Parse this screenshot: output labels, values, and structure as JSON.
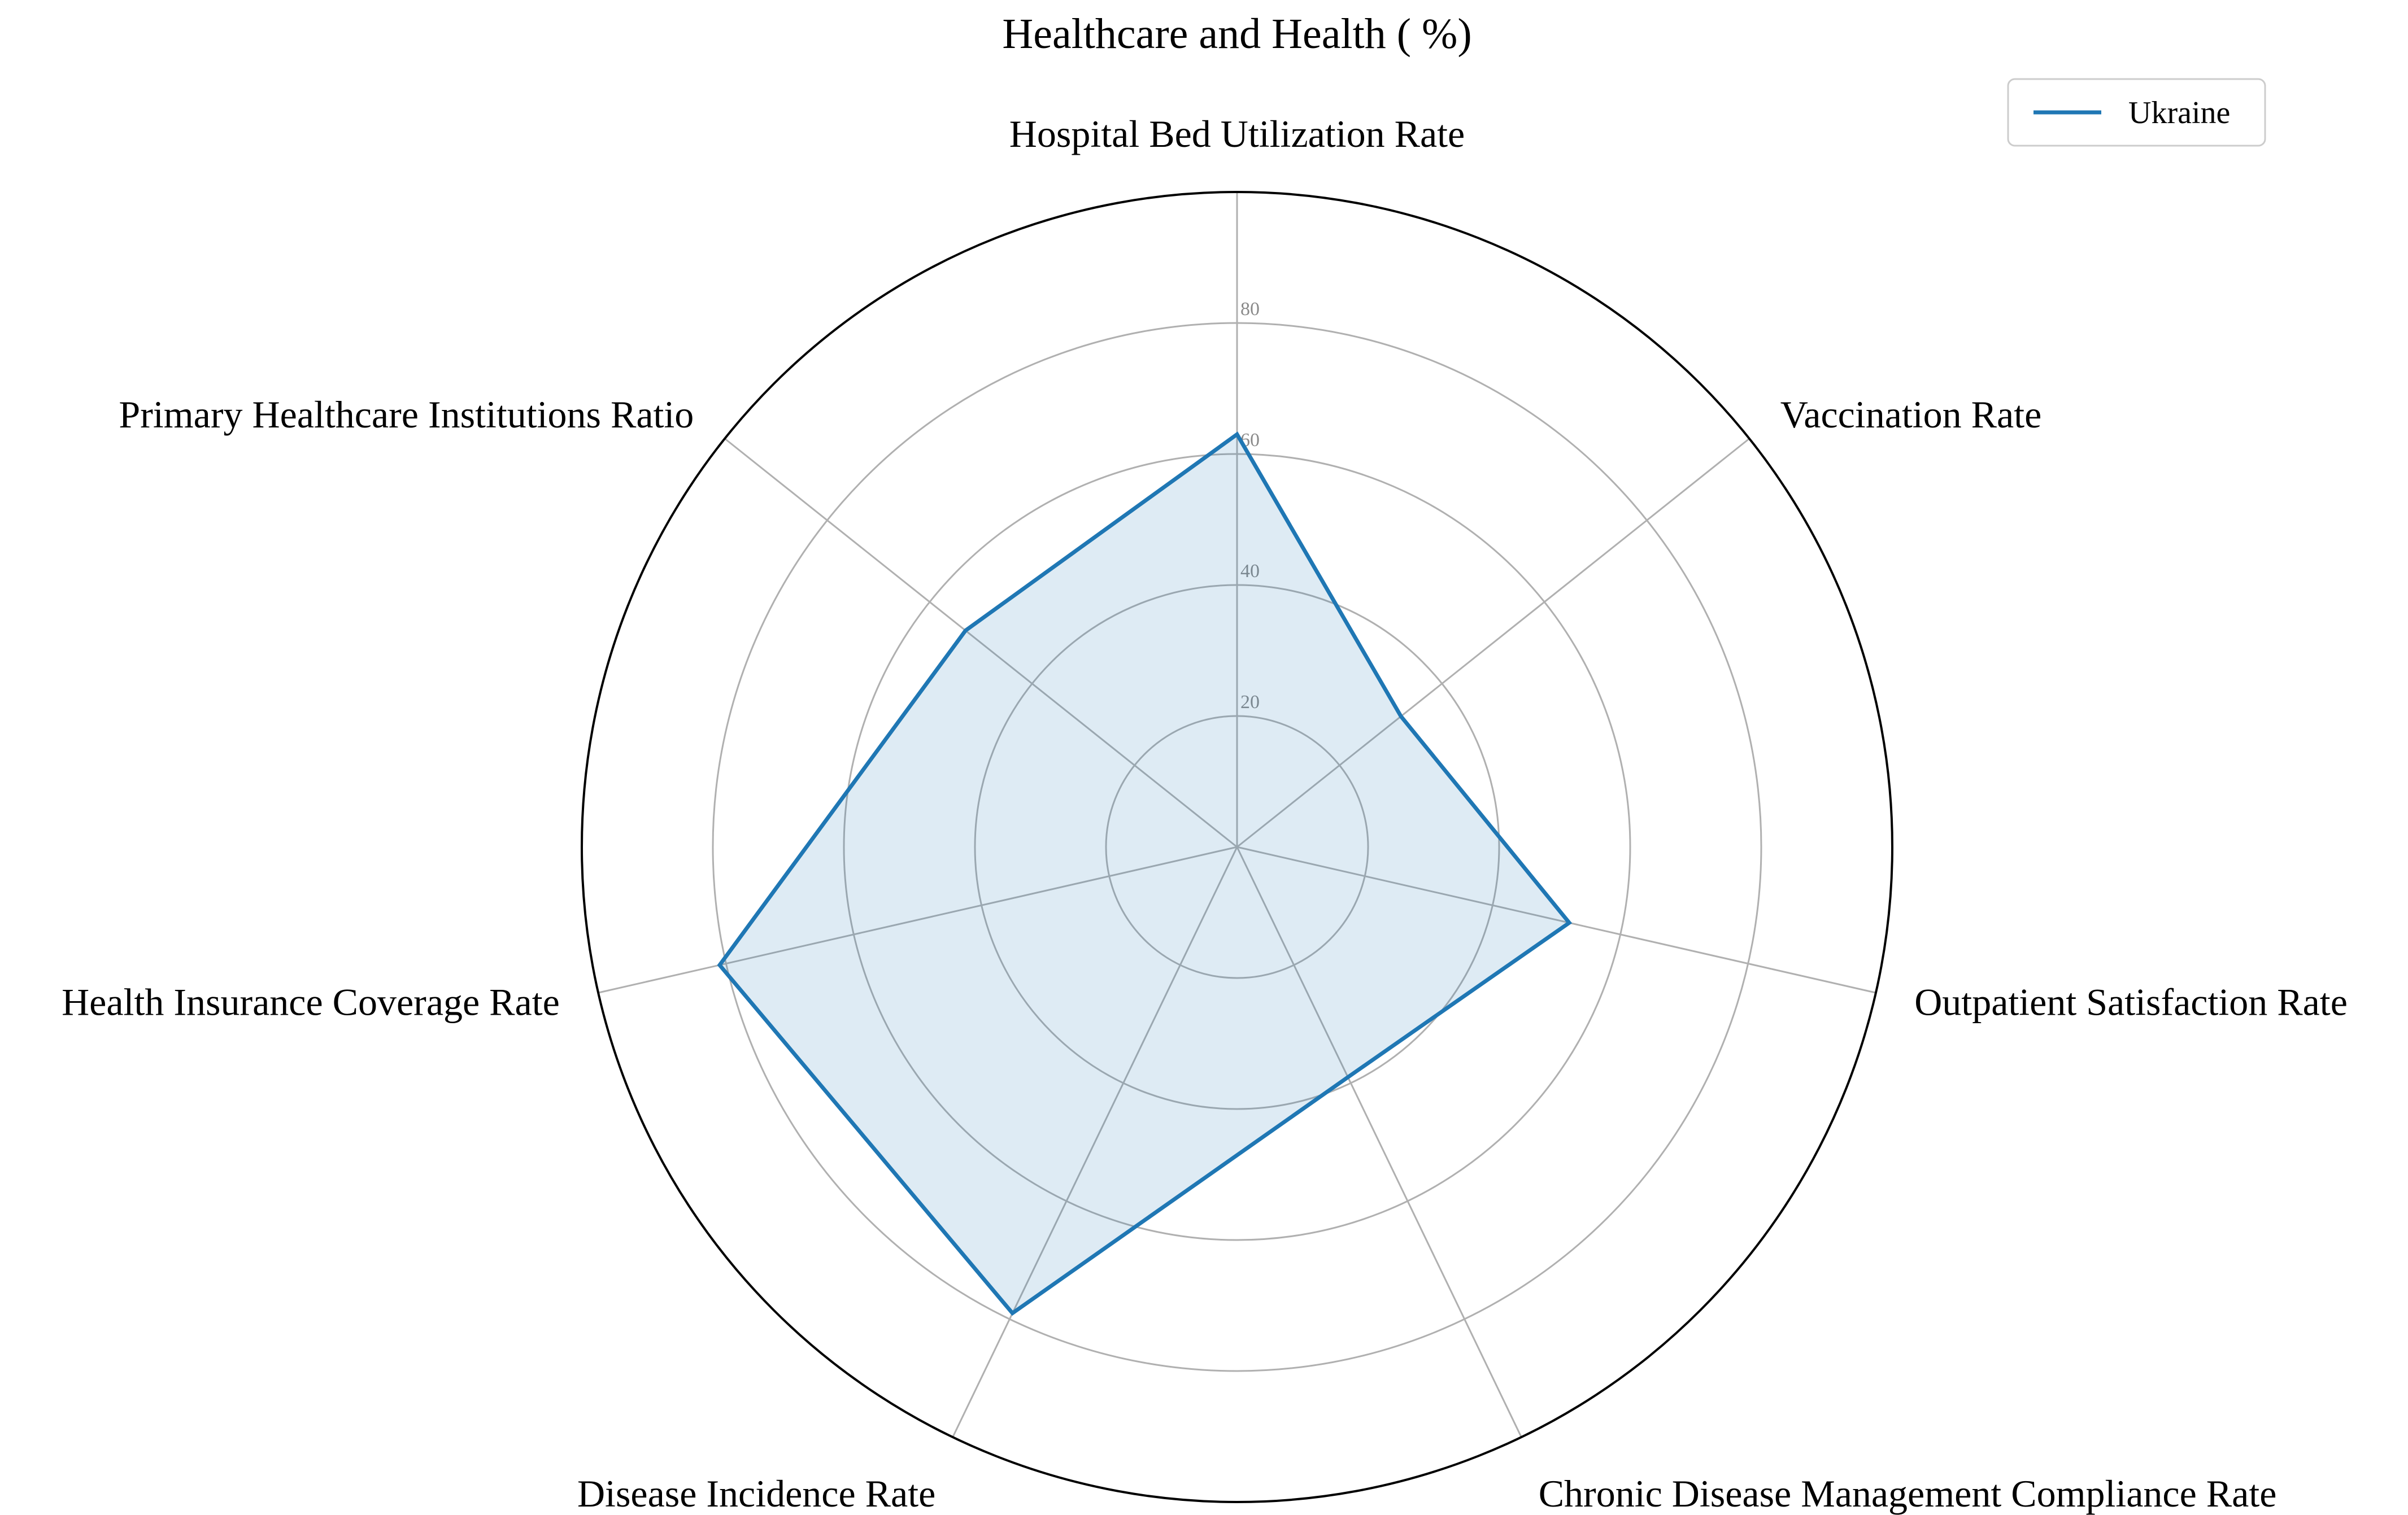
{
  "chart_data": {
    "type": "radar",
    "title": "Healthcare and Health ( %)",
    "categories": [
      "Hospital Bed Utilization Rate",
      "Vaccination Rate",
      "Outpatient Satisfaction Rate",
      "Chronic Disease Management Compliance Rate",
      "Disease Incidence Rate",
      "Health Insurance Coverage Rate",
      "Primary Healthcare Institutions Ratio"
    ],
    "series": [
      {
        "name": "Ukraine",
        "values": [
          63,
          32,
          52,
          39,
          79,
          81,
          53
        ],
        "color": "#1f77b4",
        "fill": "#1f77b4",
        "fill_opacity": 0.15
      }
    ],
    "rlim": [
      0,
      100
    ],
    "rticks": [
      20,
      40,
      60,
      80
    ],
    "grid": true,
    "legend_position": "top-right"
  }
}
